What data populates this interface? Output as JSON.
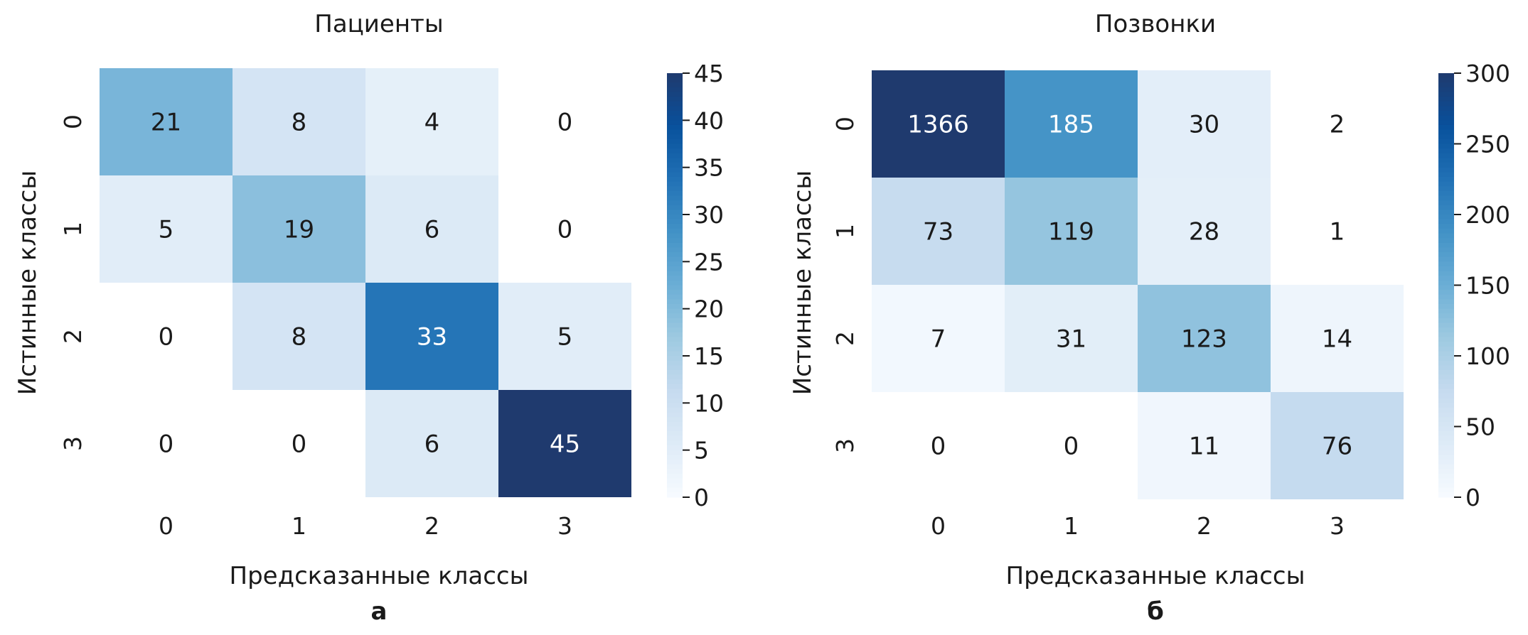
{
  "chart_data": [
    {
      "type": "heatmap",
      "title": "Пациенты",
      "xlabel": "Предсказанные классы",
      "ylabel": "Истинные классы",
      "panel_label": "а",
      "x_categories": [
        "0",
        "1",
        "2",
        "3"
      ],
      "y_categories": [
        "0",
        "1",
        "2",
        "3"
      ],
      "values": [
        [
          21,
          8,
          4,
          0
        ],
        [
          5,
          19,
          6,
          0
        ],
        [
          0,
          8,
          33,
          5
        ],
        [
          0,
          0,
          6,
          45
        ]
      ],
      "colorbar": {
        "min": 0,
        "max": 45,
        "ticks": [
          0,
          5,
          10,
          15,
          20,
          25,
          30,
          35,
          40,
          45
        ]
      },
      "colormap": "Blues",
      "blank_cells": [
        [
          0,
          3
        ],
        [
          1,
          3
        ],
        [
          2,
          0
        ],
        [
          3,
          0
        ],
        [
          3,
          1
        ]
      ]
    },
    {
      "type": "heatmap",
      "title": "Позвонки",
      "xlabel": "Предсказанные классы",
      "ylabel": "Истинные классы",
      "panel_label": "б",
      "x_categories": [
        "0",
        "1",
        "2",
        "3"
      ],
      "y_categories": [
        "0",
        "1",
        "2",
        "3"
      ],
      "values": [
        [
          1366,
          185,
          30,
          2
        ],
        [
          73,
          119,
          28,
          1
        ],
        [
          7,
          31,
          123,
          14
        ],
        [
          0,
          0,
          11,
          76
        ]
      ],
      "colorbar": {
        "min": 0,
        "max": 300,
        "ticks": [
          0,
          50,
          100,
          150,
          200,
          250,
          300
        ]
      },
      "colormap": "Blues",
      "blank_cells": [
        [
          0,
          3
        ],
        [
          1,
          3
        ],
        [
          3,
          0
        ],
        [
          3,
          1
        ]
      ]
    }
  ]
}
